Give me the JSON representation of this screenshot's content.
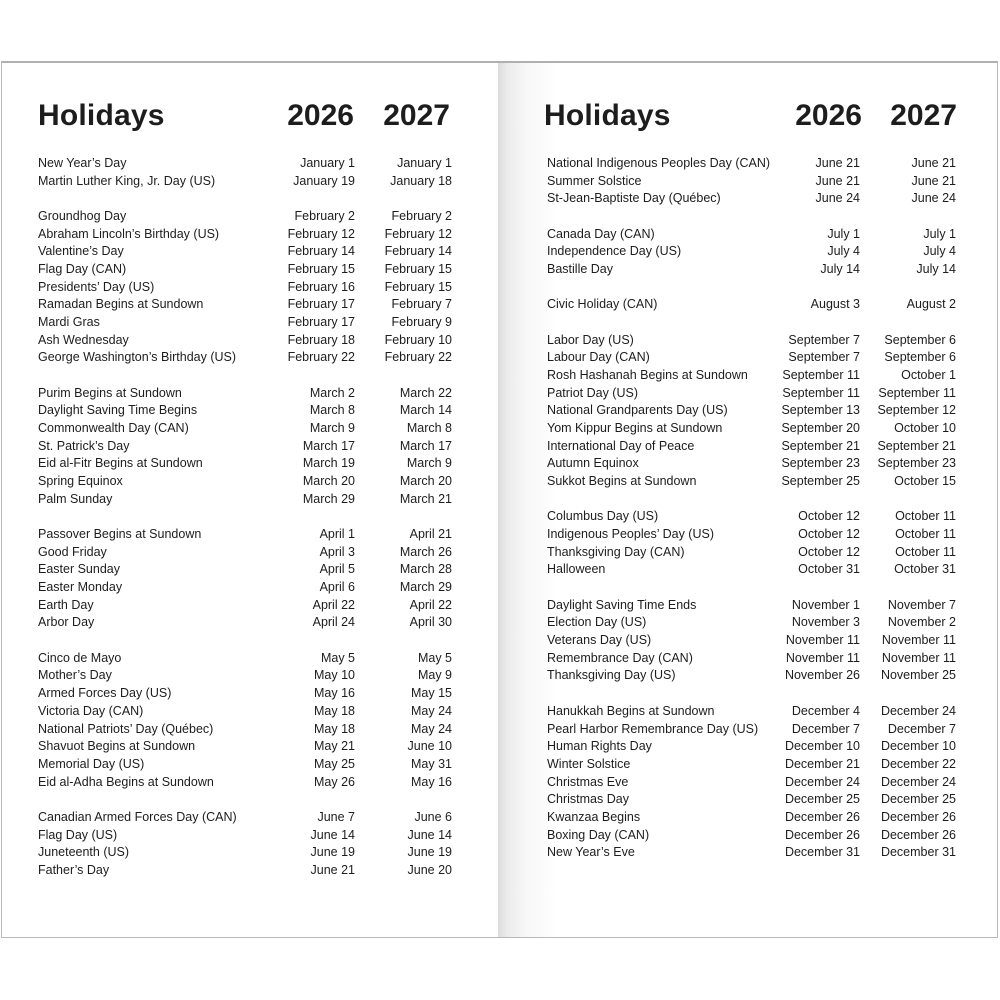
{
  "pages": [
    {
      "title": "Holidays",
      "year1": "2026",
      "year2": "2027",
      "groups": [
        [
          [
            "New Year’s Day",
            "January 1",
            "January 1"
          ],
          [
            "Martin Luther King, Jr. Day (US)",
            "January 19",
            "January 18"
          ]
        ],
        [
          [
            "Groundhog Day",
            "February 2",
            "February 2"
          ],
          [
            "Abraham Lincoln’s Birthday (US)",
            "February 12",
            "February 12"
          ],
          [
            "Valentine’s Day",
            "February 14",
            "February 14"
          ],
          [
            "Flag Day (CAN)",
            "February 15",
            "February 15"
          ],
          [
            "Presidents’ Day (US)",
            "February 16",
            "February 15"
          ],
          [
            "Ramadan Begins at Sundown",
            "February 17",
            "February 7"
          ],
          [
            "Mardi Gras",
            "February 17",
            "February 9"
          ],
          [
            "Ash Wednesday",
            "February 18",
            "February 10"
          ],
          [
            "George Washington’s Birthday (US)",
            "February 22",
            "February 22"
          ]
        ],
        [
          [
            "Purim Begins at Sundown",
            "March 2",
            "March 22"
          ],
          [
            "Daylight Saving Time Begins",
            "March 8",
            "March 14"
          ],
          [
            "Commonwealth Day (CAN)",
            "March 9",
            "March 8"
          ],
          [
            "St. Patrick’s Day",
            "March 17",
            "March 17"
          ],
          [
            "Eid al-Fitr Begins at Sundown",
            "March 19",
            "March 9"
          ],
          [
            "Spring Equinox",
            "March 20",
            "March 20"
          ],
          [
            "Palm Sunday",
            "March 29",
            "March 21"
          ]
        ],
        [
          [
            "Passover Begins at Sundown",
            "April 1",
            "April 21"
          ],
          [
            "Good Friday",
            "April 3",
            "March 26"
          ],
          [
            "Easter Sunday",
            "April 5",
            "March 28"
          ],
          [
            "Easter Monday",
            "April 6",
            "March 29"
          ],
          [
            "Earth Day",
            "April 22",
            "April 22"
          ],
          [
            "Arbor Day",
            "April 24",
            "April 30"
          ]
        ],
        [
          [
            "Cinco de Mayo",
            "May 5",
            "May 5"
          ],
          [
            "Mother’s Day",
            "May 10",
            "May 9"
          ],
          [
            "Armed Forces Day (US)",
            "May 16",
            "May 15"
          ],
          [
            "Victoria Day (CAN)",
            "May 18",
            "May 24"
          ],
          [
            "National Patriots’ Day (Québec)",
            "May 18",
            "May 24"
          ],
          [
            "Shavuot Begins at Sundown",
            "May 21",
            "June 10"
          ],
          [
            "Memorial Day (US)",
            "May 25",
            "May 31"
          ],
          [
            "Eid al-Adha Begins at Sundown",
            "May 26",
            "May 16"
          ]
        ],
        [
          [
            "Canadian Armed Forces Day (CAN)",
            "June 7",
            "June 6"
          ],
          [
            "Flag Day (US)",
            "June 14",
            "June 14"
          ],
          [
            "Juneteenth (US)",
            "June 19",
            "June 19"
          ],
          [
            "Father’s Day",
            "June 21",
            "June 20"
          ]
        ]
      ]
    },
    {
      "title": "Holidays",
      "year1": "2026",
      "year2": "2027",
      "groups": [
        [
          [
            "National Indigenous Peoples Day (CAN)",
            "June 21",
            "June 21"
          ],
          [
            "Summer Solstice",
            "June 21",
            "June 21"
          ],
          [
            "St-Jean-Baptiste Day (Québec)",
            "June 24",
            "June 24"
          ]
        ],
        [
          [
            "Canada Day (CAN)",
            "July 1",
            "July 1"
          ],
          [
            "Independence Day (US)",
            "July 4",
            "July 4"
          ],
          [
            "Bastille Day",
            "July 14",
            "July 14"
          ]
        ],
        [
          [
            "Civic Holiday (CAN)",
            "August 3",
            "August 2"
          ]
        ],
        [
          [
            "Labor Day (US)",
            "September 7",
            "September 6"
          ],
          [
            "Labour Day (CAN)",
            "September 7",
            "September 6"
          ],
          [
            "Rosh Hashanah Begins at Sundown",
            "September 11",
            "October 1"
          ],
          [
            "Patriot Day (US)",
            "September 11",
            "September 11"
          ],
          [
            "National Grandparents Day (US)",
            "September 13",
            "September 12"
          ],
          [
            "Yom Kippur Begins at Sundown",
            "September 20",
            "October 10"
          ],
          [
            "International Day of Peace",
            "September 21",
            "September 21"
          ],
          [
            "Autumn Equinox",
            "September 23",
            "September 23"
          ],
          [
            "Sukkot Begins at Sundown",
            "September 25",
            "October 15"
          ]
        ],
        [
          [
            "Columbus Day (US)",
            "October 12",
            "October 11"
          ],
          [
            "Indigenous Peoples’ Day (US)",
            "October 12",
            "October 11"
          ],
          [
            "Thanksgiving Day (CAN)",
            "October 12",
            "October 11"
          ],
          [
            "Halloween",
            "October 31",
            "October 31"
          ]
        ],
        [
          [
            "Daylight Saving Time Ends",
            "November 1",
            "November 7"
          ],
          [
            "Election Day (US)",
            "November 3",
            "November 2"
          ],
          [
            "Veterans Day (US)",
            "November 11",
            "November 11"
          ],
          [
            "Remembrance Day (CAN)",
            "November 11",
            "November 11"
          ],
          [
            "Thanksgiving Day (US)",
            "November 26",
            "November 25"
          ]
        ],
        [
          [
            "Hanukkah Begins at Sundown",
            "December 4",
            "December 24"
          ],
          [
            "Pearl Harbor Remembrance Day (US)",
            "December 7",
            "December 7"
          ],
          [
            "Human Rights Day",
            "December 10",
            "December 10"
          ],
          [
            "Winter Solstice",
            "December 21",
            "December 22"
          ],
          [
            "Christmas Eve",
            "December 24",
            "December 24"
          ],
          [
            "Christmas Day",
            "December 25",
            "December 25"
          ],
          [
            "Kwanzaa Begins",
            "December 26",
            "December 26"
          ],
          [
            "Boxing Day (CAN)",
            "December 26",
            "December 26"
          ],
          [
            "New Year’s Eve",
            "December 31",
            "December 31"
          ]
        ]
      ]
    }
  ]
}
